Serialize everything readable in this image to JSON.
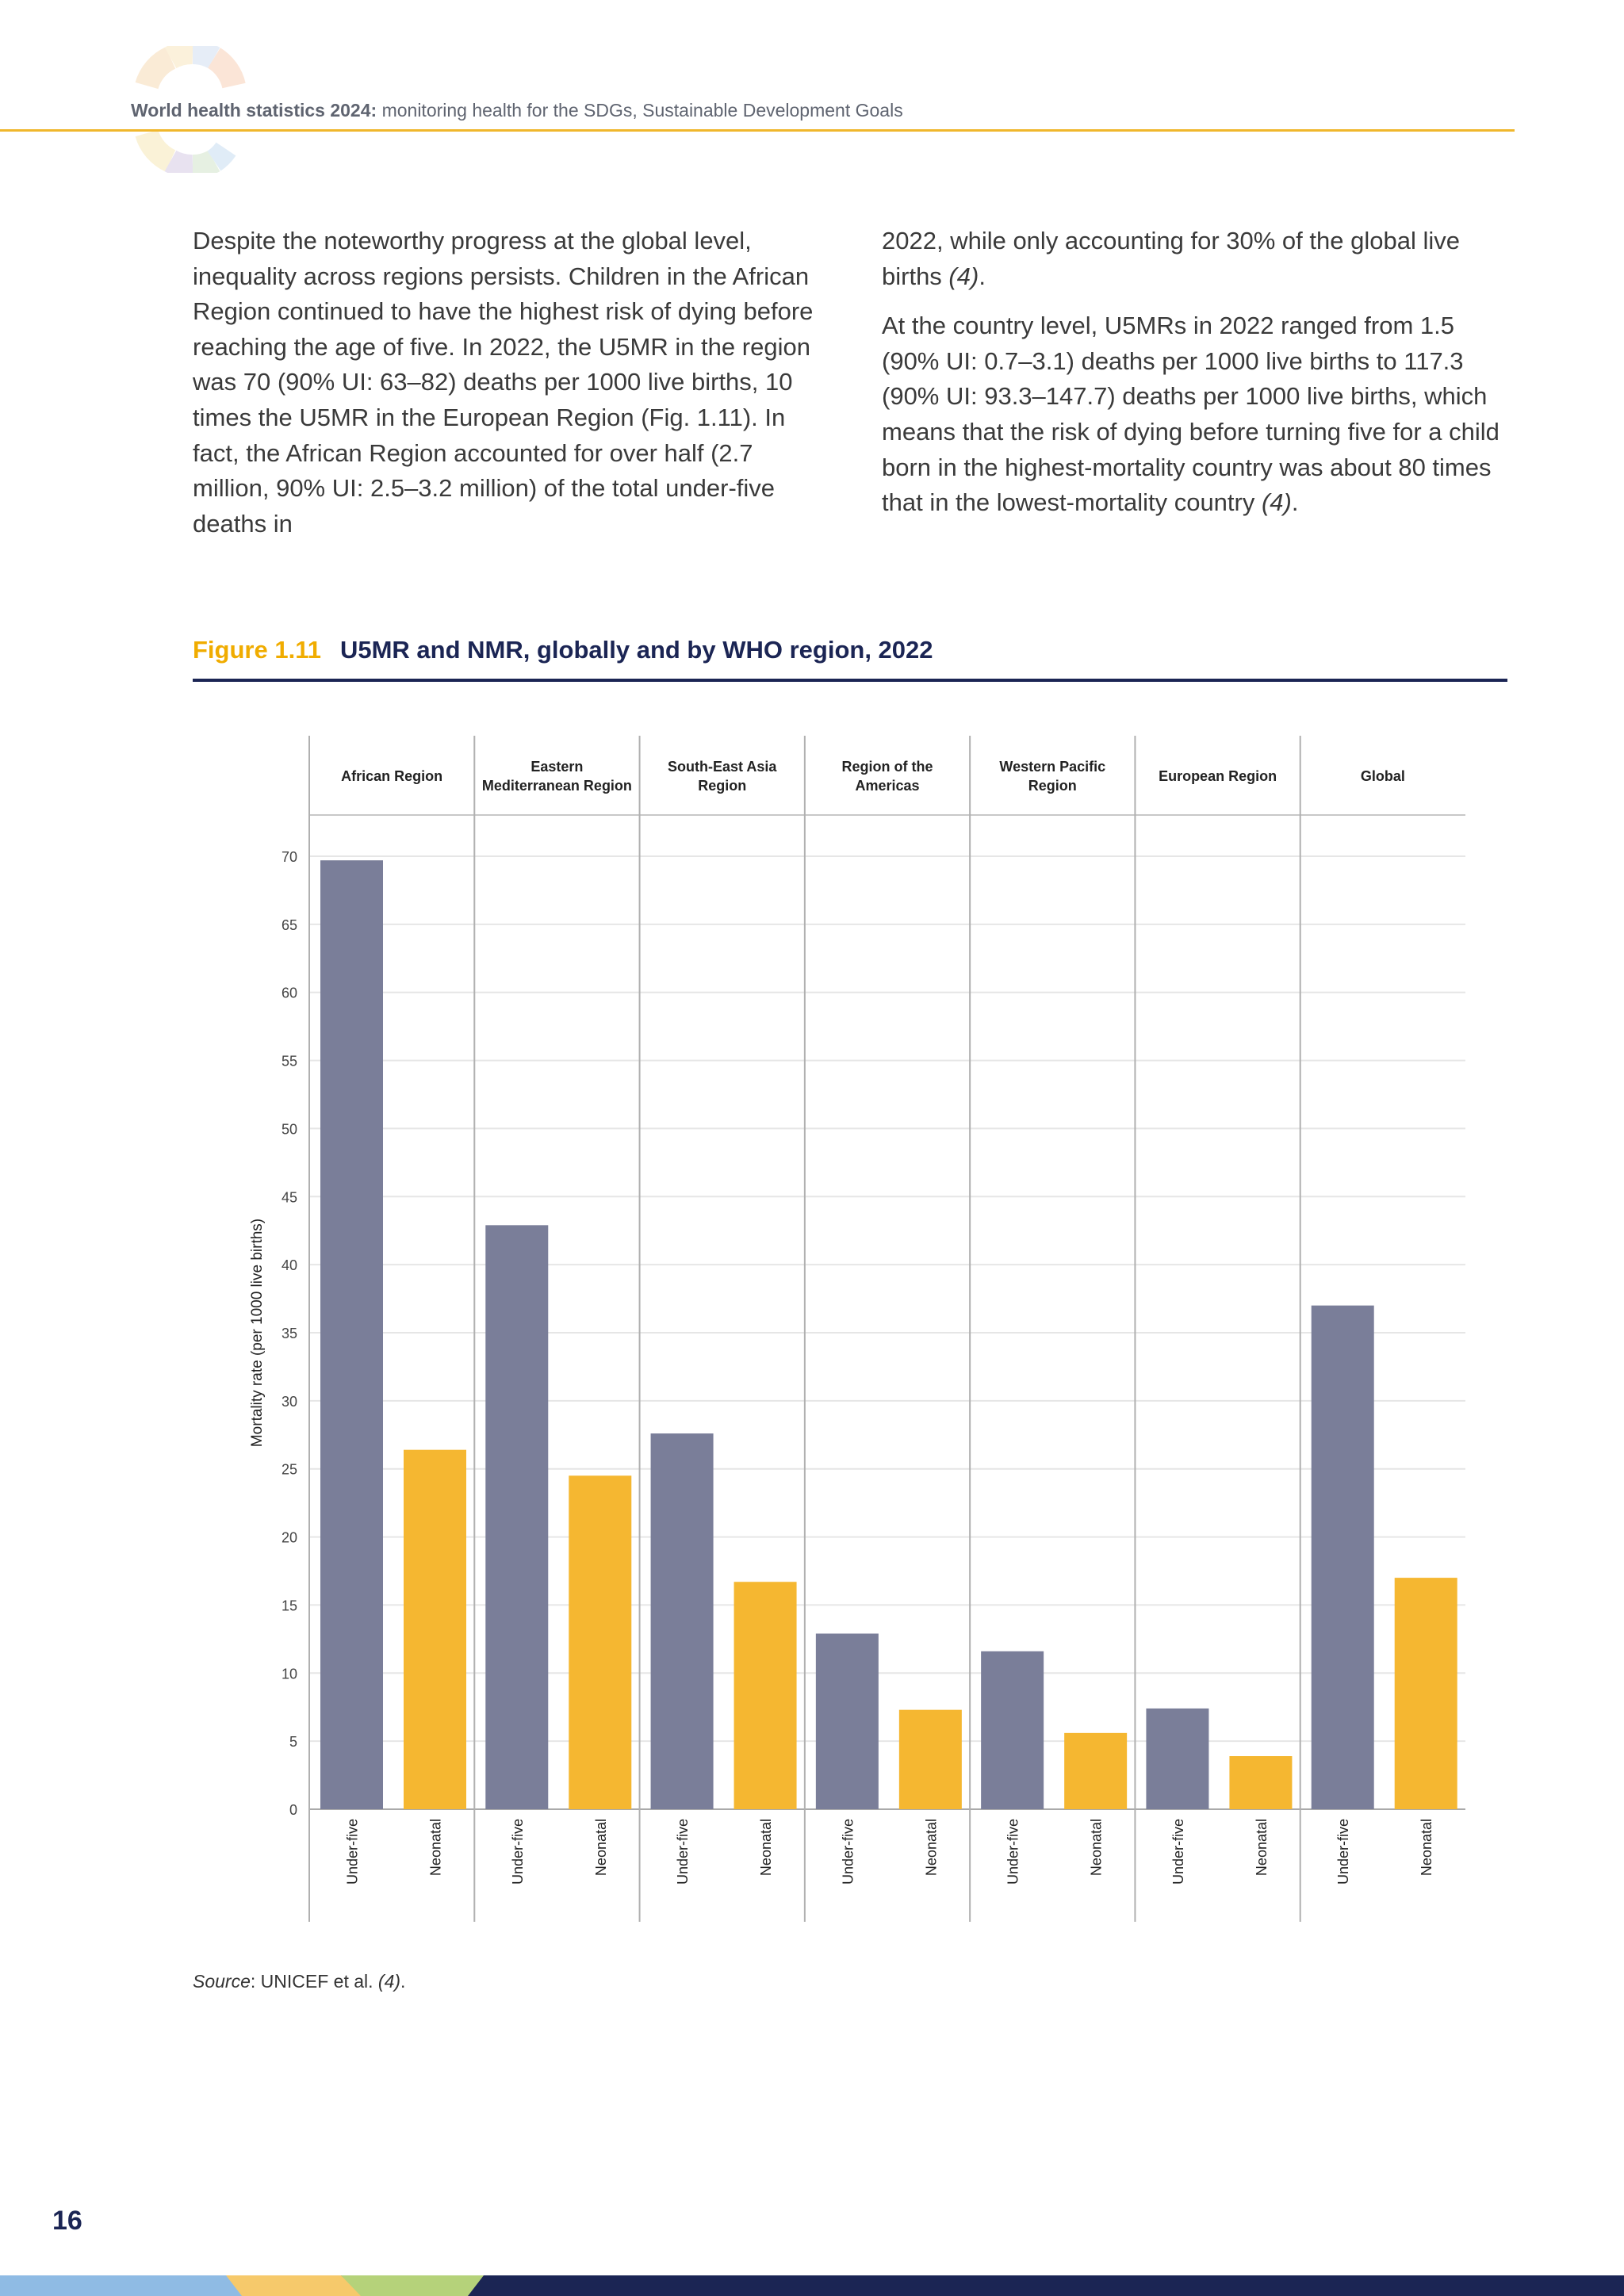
{
  "header": {
    "report_title": "World health statistics 2024:",
    "report_subtitle": " monitoring health for the SDGs, Sustainable Development Goals"
  },
  "body": {
    "left_paragraph": "Despite the noteworthy progress at the global level, inequality across regions persists. Children in the African Region continued to have the highest risk of dying before reaching the age of five. In 2022, the U5MR in the region was 70 (90% UI: 63–82) deaths per 1000 live births, 10 times the U5MR in the European Region (Fig. 1.11). In fact, the African Region accounted for over half (2.7 million, 90% UI: 2.5–3.2 million) of the total under-five deaths in",
    "right_paragraph_1": "2022, while only accounting for 30% of the global live births ",
    "right_paragraph_1_cite": "(4)",
    "right_paragraph_1_end": ".",
    "right_paragraph_2": "At the country level, U5MRs in 2022 ranged from 1.5 (90% UI: 0.7–3.1) deaths per 1000 live births to 117.3 (90% UI: 93.3–147.7) deaths per 1000 live births, which means that the risk of dying before turning five for a child born in the highest-mortality country was about 80 times that in the lowest-mortality country ",
    "right_paragraph_2_cite": "(4)",
    "right_paragraph_2_end": "."
  },
  "figure": {
    "number": "Figure 1.11",
    "caption": "U5MR and NMR, globally and by WHO region, 2022"
  },
  "source": {
    "label": "Source",
    "text": ": UNICEF et al. ",
    "cite": "(4)",
    "end": "."
  },
  "page_number": "16",
  "colors": {
    "under_five": "#7a7e99",
    "neonatal": "#f5b731",
    "accent": "#f0ac00",
    "navy": "#1b2554"
  },
  "chart_data": {
    "type": "bar",
    "title": "",
    "ylabel": "Mortality rate (per 1000 live births)",
    "ylim": [
      0,
      70
    ],
    "yticks": [
      0,
      5,
      10,
      15,
      20,
      25,
      30,
      35,
      40,
      45,
      50,
      55,
      60,
      65,
      70
    ],
    "grid": true,
    "bar_labels": [
      "Under-five",
      "Neonatal"
    ],
    "groups": [
      {
        "name": [
          "African Region"
        ],
        "values": [
          69.7,
          26.4
        ]
      },
      {
        "name": [
          "Eastern",
          "Mediterranean Region"
        ],
        "values": [
          42.9,
          24.5
        ]
      },
      {
        "name": [
          "South-East Asia",
          "Region"
        ],
        "values": [
          27.6,
          16.7
        ]
      },
      {
        "name": [
          "Region of the",
          "Americas"
        ],
        "values": [
          12.9,
          7.3
        ]
      },
      {
        "name": [
          "Western Pacific",
          "Region"
        ],
        "values": [
          11.6,
          5.6
        ]
      },
      {
        "name": [
          "European Region"
        ],
        "values": [
          7.4,
          3.9
        ]
      },
      {
        "name": [
          "Global"
        ],
        "values": [
          37.0,
          17.0
        ]
      }
    ]
  }
}
